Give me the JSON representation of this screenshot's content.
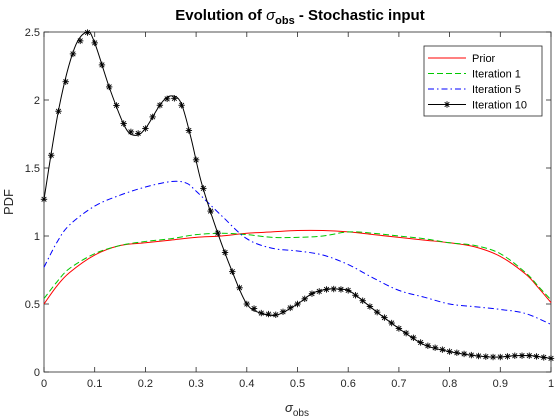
{
  "chart_data": {
    "type": "line",
    "title": {
      "prefix": "Evolution of ",
      "symbol": "σ",
      "subscript": "obs",
      "suffix": " - Stochastic input"
    },
    "xlabel": {
      "symbol": "σ",
      "subscript": "obs"
    },
    "ylabel": "PDF",
    "xlim": [
      0,
      1
    ],
    "ylim": [
      0,
      2.5
    ],
    "xticks": [
      "0",
      "0.1",
      "0.2",
      "0.3",
      "0.4",
      "0.5",
      "0.6",
      "0.7",
      "0.8",
      "0.9",
      "1"
    ],
    "yticks": [
      "0",
      "0.5",
      "1",
      "1.5",
      "2",
      "2.5"
    ],
    "legend_position": "top-right",
    "series": [
      {
        "name": "Prior",
        "color": "#ff0000",
        "dash": "solid",
        "marker": "none",
        "x": [
          0,
          0.025,
          0.05,
          0.1,
          0.15,
          0.2,
          0.25,
          0.3,
          0.35,
          0.4,
          0.45,
          0.5,
          0.55,
          0.6,
          0.65,
          0.7,
          0.75,
          0.8,
          0.85,
          0.9,
          0.95,
          0.975,
          1
        ],
        "y": [
          0.5,
          0.63,
          0.73,
          0.86,
          0.93,
          0.95,
          0.97,
          0.99,
          1.0,
          1.02,
          1.03,
          1.04,
          1.04,
          1.03,
          1.01,
          0.99,
          0.97,
          0.95,
          0.92,
          0.85,
          0.72,
          0.62,
          0.51
        ]
      },
      {
        "name": "Iteration 1",
        "color": "#00c800",
        "dash": "dashed",
        "marker": "none",
        "x": [
          0,
          0.025,
          0.05,
          0.1,
          0.15,
          0.2,
          0.25,
          0.3,
          0.35,
          0.4,
          0.45,
          0.5,
          0.55,
          0.6,
          0.65,
          0.7,
          0.75,
          0.8,
          0.85,
          0.9,
          0.95,
          0.975,
          1
        ],
        "y": [
          0.54,
          0.66,
          0.76,
          0.87,
          0.93,
          0.96,
          0.98,
          1.01,
          1.02,
          1.01,
          0.99,
          0.99,
          1.0,
          1.03,
          1.02,
          1.0,
          0.98,
          0.95,
          0.93,
          0.87,
          0.73,
          0.63,
          0.53
        ]
      },
      {
        "name": "Iteration 5",
        "color": "#0000ff",
        "dash": "dashdot",
        "marker": "none",
        "x": [
          0,
          0.025,
          0.05,
          0.1,
          0.15,
          0.2,
          0.25,
          0.28,
          0.3,
          0.35,
          0.4,
          0.45,
          0.5,
          0.55,
          0.6,
          0.65,
          0.7,
          0.75,
          0.8,
          0.85,
          0.9,
          0.95,
          1
        ],
        "y": [
          0.77,
          0.95,
          1.08,
          1.22,
          1.3,
          1.36,
          1.4,
          1.39,
          1.33,
          1.15,
          0.98,
          0.91,
          0.89,
          0.86,
          0.79,
          0.69,
          0.6,
          0.55,
          0.5,
          0.48,
          0.46,
          0.43,
          0.35
        ]
      },
      {
        "name": "Iteration 10",
        "color": "#000000",
        "dash": "solid",
        "marker": "asterisk",
        "x": [
          0,
          0.03,
          0.06,
          0.085,
          0.1,
          0.13,
          0.16,
          0.18,
          0.2,
          0.23,
          0.25,
          0.27,
          0.29,
          0.31,
          0.34,
          0.37,
          0.4,
          0.43,
          0.46,
          0.5,
          0.53,
          0.56,
          0.58,
          0.6,
          0.62,
          0.65,
          0.7,
          0.75,
          0.8,
          0.85,
          0.88,
          0.9,
          0.93,
          0.96,
          0.98,
          1
        ],
        "y": [
          1.27,
          1.95,
          2.38,
          2.5,
          2.42,
          2.08,
          1.8,
          1.74,
          1.79,
          1.97,
          2.03,
          1.98,
          1.72,
          1.4,
          1.05,
          0.75,
          0.5,
          0.43,
          0.42,
          0.5,
          0.58,
          0.61,
          0.61,
          0.6,
          0.55,
          0.46,
          0.32,
          0.2,
          0.15,
          0.12,
          0.11,
          0.11,
          0.12,
          0.12,
          0.11,
          0.1
        ]
      }
    ]
  }
}
